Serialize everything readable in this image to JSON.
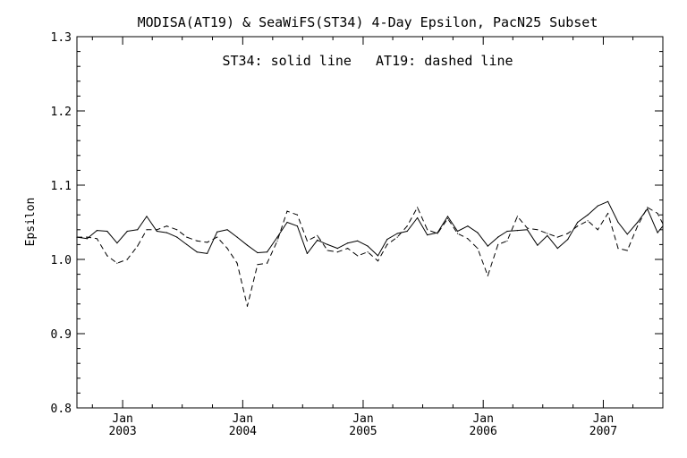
{
  "chart_data": {
    "type": "line",
    "title": "MODISA(AT19) & SeaWiFS(ST34) 4-Day Epsilon, PacN25 Subset",
    "annotation": "ST34: solid line   AT19: dashed line",
    "xlabel": "",
    "ylabel": "Epsilon",
    "xlim": [
      "2002-08-15",
      "2007-07-01"
    ],
    "ylim": [
      0.8,
      1.3
    ],
    "y_ticks": [
      "0.8",
      "0.9",
      "1.0",
      "1.1",
      "1.2",
      "1.3"
    ],
    "x_ticks": [
      {
        "date": "2003-01-01",
        "month": "Jan",
        "year": "2003"
      },
      {
        "date": "2004-01-01",
        "month": "Jan",
        "year": "2004"
      },
      {
        "date": "2005-01-01",
        "month": "Jan",
        "year": "2005"
      },
      {
        "date": "2006-01-01",
        "month": "Jan",
        "year": "2006"
      },
      {
        "date": "2007-01-01",
        "month": "Jan",
        "year": "2007"
      }
    ],
    "grid": false,
    "legend": "none",
    "series": [
      {
        "name": "ST34",
        "line_style": "solid",
        "color": "#000000",
        "points": [
          [
            "2002-08-15",
            1.03
          ],
          [
            "2002-09-15",
            1.028
          ],
          [
            "2002-10-15",
            1.039
          ],
          [
            "2002-11-15",
            1.038
          ],
          [
            "2002-12-15",
            1.022
          ],
          [
            "2003-01-15",
            1.038
          ],
          [
            "2003-02-15",
            1.04
          ],
          [
            "2003-03-15",
            1.058
          ],
          [
            "2003-04-15",
            1.038
          ],
          [
            "2003-05-15",
            1.036
          ],
          [
            "2003-06-15",
            1.03
          ],
          [
            "2003-07-15",
            1.02
          ],
          [
            "2003-08-15",
            1.01
          ],
          [
            "2003-09-15",
            1.008
          ],
          [
            "2003-10-15",
            1.037
          ],
          [
            "2003-11-15",
            1.04
          ],
          [
            "2003-12-15",
            1.03
          ],
          [
            "2004-01-15",
            1.019
          ],
          [
            "2004-02-15",
            1.009
          ],
          [
            "2004-03-15",
            1.01
          ],
          [
            "2004-04-15",
            1.03
          ],
          [
            "2004-05-15",
            1.05
          ],
          [
            "2004-06-15",
            1.045
          ],
          [
            "2004-07-15",
            1.008
          ],
          [
            "2004-08-15",
            1.026
          ],
          [
            "2004-09-15",
            1.02
          ],
          [
            "2004-10-15",
            1.015
          ],
          [
            "2004-11-15",
            1.022
          ],
          [
            "2004-12-15",
            1.025
          ],
          [
            "2005-01-15",
            1.018
          ],
          [
            "2005-02-15",
            1.005
          ],
          [
            "2005-03-15",
            1.027
          ],
          [
            "2005-04-15",
            1.035
          ],
          [
            "2005-05-15",
            1.038
          ],
          [
            "2005-06-15",
            1.056
          ],
          [
            "2005-07-15",
            1.033
          ],
          [
            "2005-08-15",
            1.036
          ],
          [
            "2005-09-15",
            1.058
          ],
          [
            "2005-10-15",
            1.038
          ],
          [
            "2005-11-15",
            1.045
          ],
          [
            "2005-12-15",
            1.036
          ],
          [
            "2006-01-15",
            1.018
          ],
          [
            "2006-02-15",
            1.03
          ],
          [
            "2006-03-15",
            1.038
          ],
          [
            "2006-04-15",
            1.039
          ],
          [
            "2006-05-15",
            1.04
          ],
          [
            "2006-06-15",
            1.019
          ],
          [
            "2006-07-15",
            1.032
          ],
          [
            "2006-08-15",
            1.015
          ],
          [
            "2006-09-15",
            1.027
          ],
          [
            "2006-10-15",
            1.05
          ],
          [
            "2006-11-15",
            1.06
          ],
          [
            "2006-12-15",
            1.072
          ],
          [
            "2007-01-15",
            1.078
          ],
          [
            "2007-02-15",
            1.05
          ],
          [
            "2007-03-15",
            1.034
          ],
          [
            "2007-04-15",
            1.05
          ],
          [
            "2007-05-15",
            1.068
          ],
          [
            "2007-06-15",
            1.036
          ],
          [
            "2007-07-01",
            1.045
          ]
        ]
      },
      {
        "name": "AT19",
        "line_style": "dashed",
        "color": "#000000",
        "points": [
          [
            "2002-08-15",
            1.03
          ],
          [
            "2002-09-15",
            1.03
          ],
          [
            "2002-10-15",
            1.028
          ],
          [
            "2002-11-15",
            1.005
          ],
          [
            "2002-12-15",
            0.995
          ],
          [
            "2003-01-15",
            1.0
          ],
          [
            "2003-02-15",
            1.018
          ],
          [
            "2003-03-15",
            1.04
          ],
          [
            "2003-04-15",
            1.04
          ],
          [
            "2003-05-15",
            1.045
          ],
          [
            "2003-06-15",
            1.04
          ],
          [
            "2003-07-15",
            1.03
          ],
          [
            "2003-08-15",
            1.025
          ],
          [
            "2003-09-15",
            1.023
          ],
          [
            "2003-10-15",
            1.03
          ],
          [
            "2003-11-15",
            1.015
          ],
          [
            "2003-12-15",
            0.995
          ],
          [
            "2004-01-15",
            0.937
          ],
          [
            "2004-02-15",
            0.993
          ],
          [
            "2004-03-15",
            0.995
          ],
          [
            "2004-04-15",
            1.025
          ],
          [
            "2004-05-15",
            1.065
          ],
          [
            "2004-06-15",
            1.06
          ],
          [
            "2004-07-15",
            1.025
          ],
          [
            "2004-08-15",
            1.032
          ],
          [
            "2004-09-15",
            1.012
          ],
          [
            "2004-10-15",
            1.01
          ],
          [
            "2004-11-15",
            1.015
          ],
          [
            "2004-12-15",
            1.005
          ],
          [
            "2005-01-15",
            1.01
          ],
          [
            "2005-02-15",
            0.998
          ],
          [
            "2005-03-15",
            1.02
          ],
          [
            "2005-04-15",
            1.03
          ],
          [
            "2005-05-15",
            1.045
          ],
          [
            "2005-06-15",
            1.07
          ],
          [
            "2005-07-15",
            1.04
          ],
          [
            "2005-08-15",
            1.035
          ],
          [
            "2005-09-15",
            1.055
          ],
          [
            "2005-10-15",
            1.035
          ],
          [
            "2005-11-15",
            1.028
          ],
          [
            "2005-12-15",
            1.015
          ],
          [
            "2006-01-15",
            0.978
          ],
          [
            "2006-02-15",
            1.02
          ],
          [
            "2006-03-15",
            1.025
          ],
          [
            "2006-04-15",
            1.058
          ],
          [
            "2006-05-15",
            1.042
          ],
          [
            "2006-06-15",
            1.04
          ],
          [
            "2006-07-15",
            1.035
          ],
          [
            "2006-08-15",
            1.03
          ],
          [
            "2006-09-15",
            1.035
          ],
          [
            "2006-10-15",
            1.045
          ],
          [
            "2006-11-15",
            1.052
          ],
          [
            "2006-12-15",
            1.04
          ],
          [
            "2007-01-15",
            1.062
          ],
          [
            "2007-02-15",
            1.015
          ],
          [
            "2007-03-15",
            1.012
          ],
          [
            "2007-04-15",
            1.045
          ],
          [
            "2007-05-15",
            1.07
          ],
          [
            "2007-06-15",
            1.062
          ],
          [
            "2007-07-01",
            1.048
          ]
        ]
      }
    ]
  }
}
